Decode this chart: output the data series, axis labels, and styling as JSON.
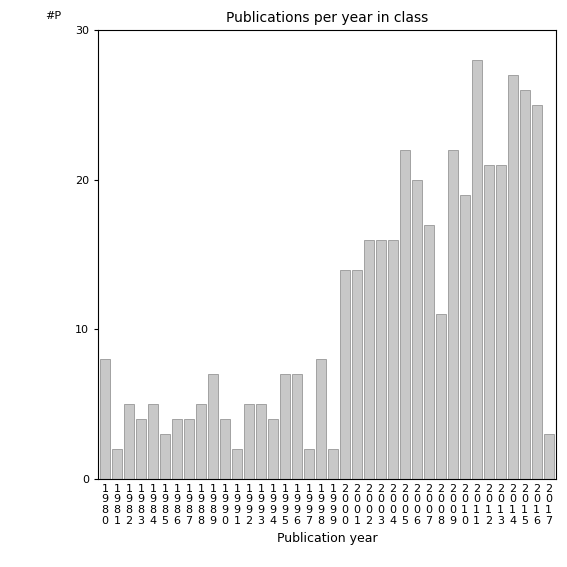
{
  "years": [
    "1980",
    "1981",
    "1982",
    "1983",
    "1984",
    "1985",
    "1986",
    "1987",
    "1988",
    "1989",
    "1990",
    "1991",
    "1992",
    "1993",
    "1994",
    "1995",
    "1996",
    "1997",
    "1998",
    "1999",
    "2000",
    "2001",
    "2002",
    "2003",
    "2004",
    "2005",
    "2006",
    "2007",
    "2008",
    "2009",
    "2010",
    "2011",
    "2012",
    "2013",
    "2014",
    "2015",
    "2016",
    "2017"
  ],
  "values": [
    8,
    2,
    5,
    4,
    5,
    3,
    4,
    4,
    5,
    7,
    4,
    2,
    5,
    5,
    4,
    7,
    7,
    2,
    8,
    2,
    14,
    14,
    16,
    16,
    16,
    22,
    20,
    17,
    11,
    22,
    19,
    28,
    21,
    21,
    27,
    26,
    25,
    3
  ],
  "title": "Publications per year in class",
  "xlabel": "Publication year",
  "ylabel_annotation": "#P",
  "bar_color": "#c8c8c8",
  "bar_edgecolor": "#888888",
  "ylim": [
    0,
    30
  ],
  "yticks": [
    0,
    10,
    20,
    30
  ],
  "background_color": "#ffffff",
  "title_fontsize": 10,
  "tick_fontsize": 8,
  "xlabel_fontsize": 9
}
